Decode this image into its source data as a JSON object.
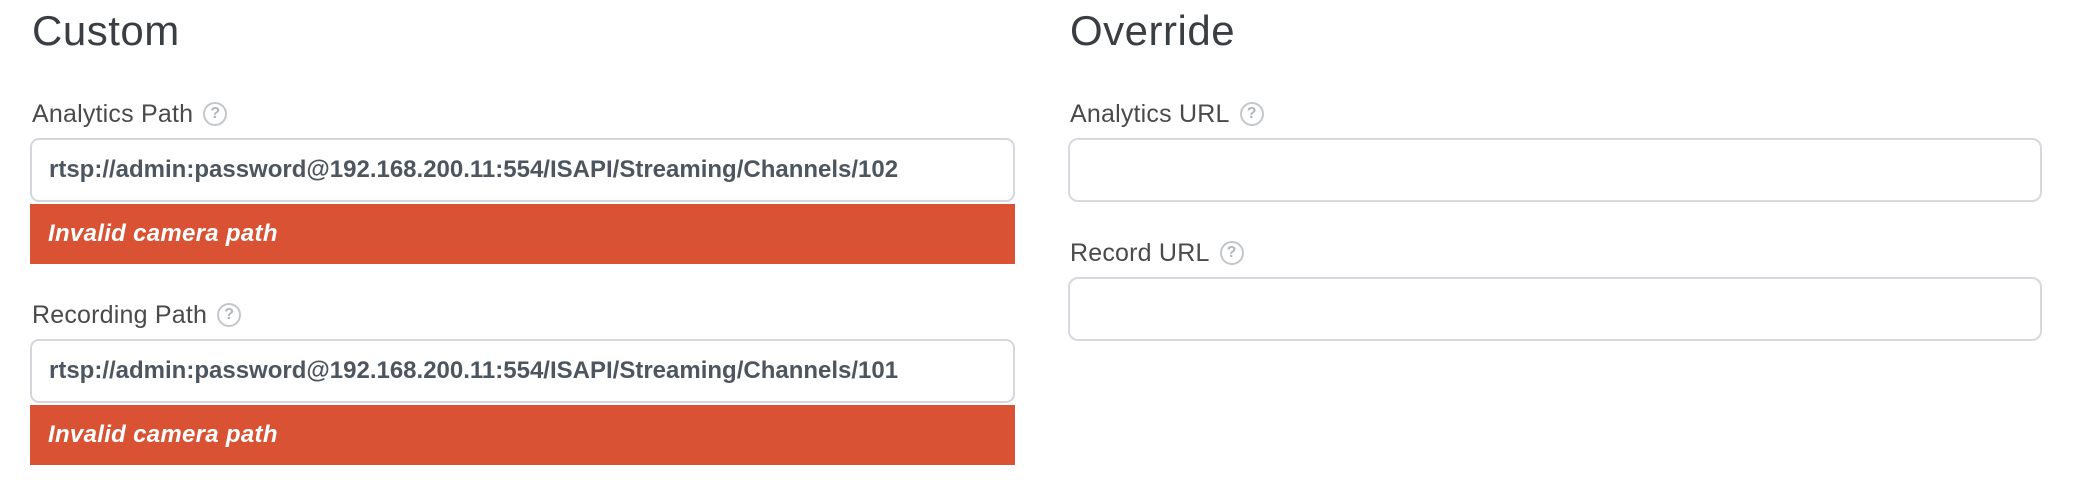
{
  "colors": {
    "error_background": "#d85233",
    "error_text": "#ffffff",
    "input_border": "#d3d7dc",
    "input_text": "#4d565f",
    "heading_text": "#3a3e42",
    "label_text": "#4a4a4a"
  },
  "help_glyph": "?",
  "custom": {
    "heading": "Custom",
    "fields": [
      {
        "label": "Analytics Path",
        "value": "rtsp://admin:password@192.168.200.11:554/ISAPI/Streaming/Channels/102",
        "error": "Invalid camera path"
      },
      {
        "label": "Recording Path",
        "value": "rtsp://admin:password@192.168.200.11:554/ISAPI/Streaming/Channels/101",
        "error": "Invalid camera path"
      }
    ]
  },
  "override": {
    "heading": "Override",
    "fields": [
      {
        "label": "Analytics URL",
        "value": ""
      },
      {
        "label": "Record URL",
        "value": ""
      }
    ]
  }
}
